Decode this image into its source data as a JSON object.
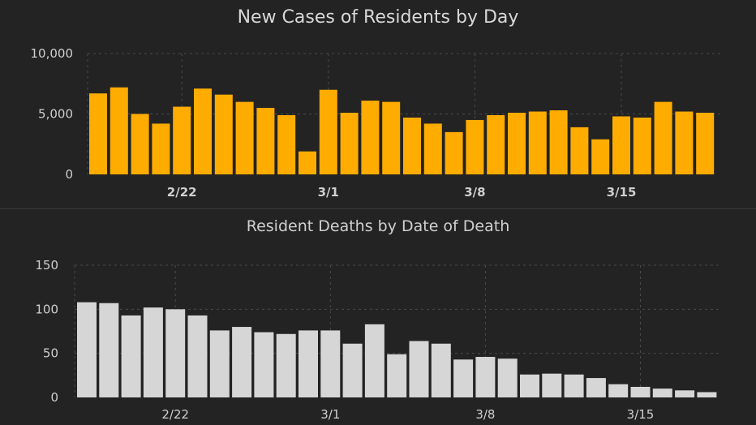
{
  "chart_data": [
    {
      "type": "bar",
      "title": "New Cases of Residents by Day",
      "xlabel": "",
      "ylabel": "",
      "ylim": [
        0,
        10000
      ],
      "yticks": [
        "0",
        "5,000",
        "10,000"
      ],
      "ytick_values": [
        0,
        5000,
        10000
      ],
      "xtick_labels": [
        {
          "label": "2/22",
          "index": 4
        },
        {
          "label": "3/1",
          "index": 11
        },
        {
          "label": "3/8",
          "index": 18
        },
        {
          "label": "3/15",
          "index": 25
        }
      ],
      "grid": true,
      "bar_color": "#ffac00",
      "values": [
        6700,
        7200,
        5000,
        4200,
        5600,
        7100,
        6600,
        6000,
        5500,
        4900,
        1900,
        7000,
        5100,
        6100,
        6000,
        4700,
        4200,
        3500,
        4500,
        4900,
        5100,
        5200,
        5300,
        3900,
        2900,
        4800,
        4700,
        6000,
        5200,
        5100
      ]
    },
    {
      "type": "bar",
      "title": "Resident Deaths by Date of Death",
      "xlabel": "",
      "ylabel": "",
      "ylim": [
        0,
        150
      ],
      "yticks": [
        "0",
        "50",
        "100",
        "150"
      ],
      "ytick_values": [
        0,
        50,
        100,
        150
      ],
      "xtick_labels": [
        {
          "label": "2/22",
          "index": 4
        },
        {
          "label": "3/1",
          "index": 11
        },
        {
          "label": "3/8",
          "index": 18
        },
        {
          "label": "3/15",
          "index": 25
        }
      ],
      "grid": true,
      "bar_color": "#d6d6d6",
      "values": [
        108,
        107,
        93,
        102,
        100,
        93,
        76,
        80,
        74,
        72,
        76,
        76,
        61,
        83,
        49,
        64,
        61,
        43,
        46,
        44,
        26,
        27,
        26,
        22,
        15,
        12,
        10,
        8,
        6
      ]
    }
  ],
  "colors": {
    "background": "#232323",
    "axis_text": "#cfcfcf",
    "title_text": "#d8d8d8",
    "grid": "#4a4a4a"
  }
}
